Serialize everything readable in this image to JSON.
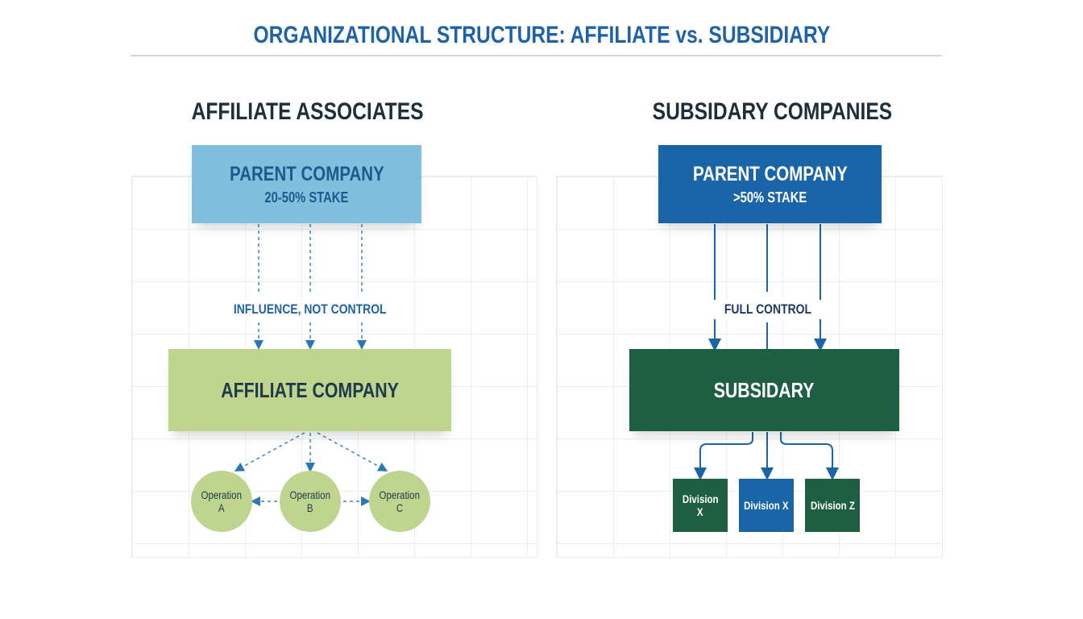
{
  "title": "ORGANIZATIONAL STRUCTURE: AFFILIATE vs. SUBSIDIARY",
  "colors": {
    "title": "#1f63a6",
    "heading": "#1e2e3c",
    "light_blue": "#80c0de",
    "dark_blue": "#1a64a8",
    "light_green": "#bed48f",
    "dark_green": "#1e5f43"
  },
  "affiliate": {
    "heading": "AFFILIATE ASSOCIATES",
    "parent": {
      "name": "PARENT COMPANY",
      "stake": "20-50% STAKE"
    },
    "relation": "INFLUENCE, NOT CONTROL",
    "company": "AFFILIATE COMPANY",
    "operations": [
      {
        "l1": "Operation",
        "l2": "A"
      },
      {
        "l1": "Operation",
        "l2": "B"
      },
      {
        "l1": "Operation",
        "l2": "C"
      }
    ]
  },
  "subsidiary": {
    "heading": "SUBSIDARY COMPANIES",
    "parent": {
      "name": "PARENT COMPANY",
      "stake": ">50% STAKE"
    },
    "relation": "FULL CONTROL",
    "company": "SUBSIDARY",
    "divisions": [
      {
        "l1": "Division",
        "l2": "X"
      },
      {
        "l1": "Division X",
        "l2": ""
      },
      {
        "l1": "Division Z",
        "l2": ""
      }
    ]
  }
}
